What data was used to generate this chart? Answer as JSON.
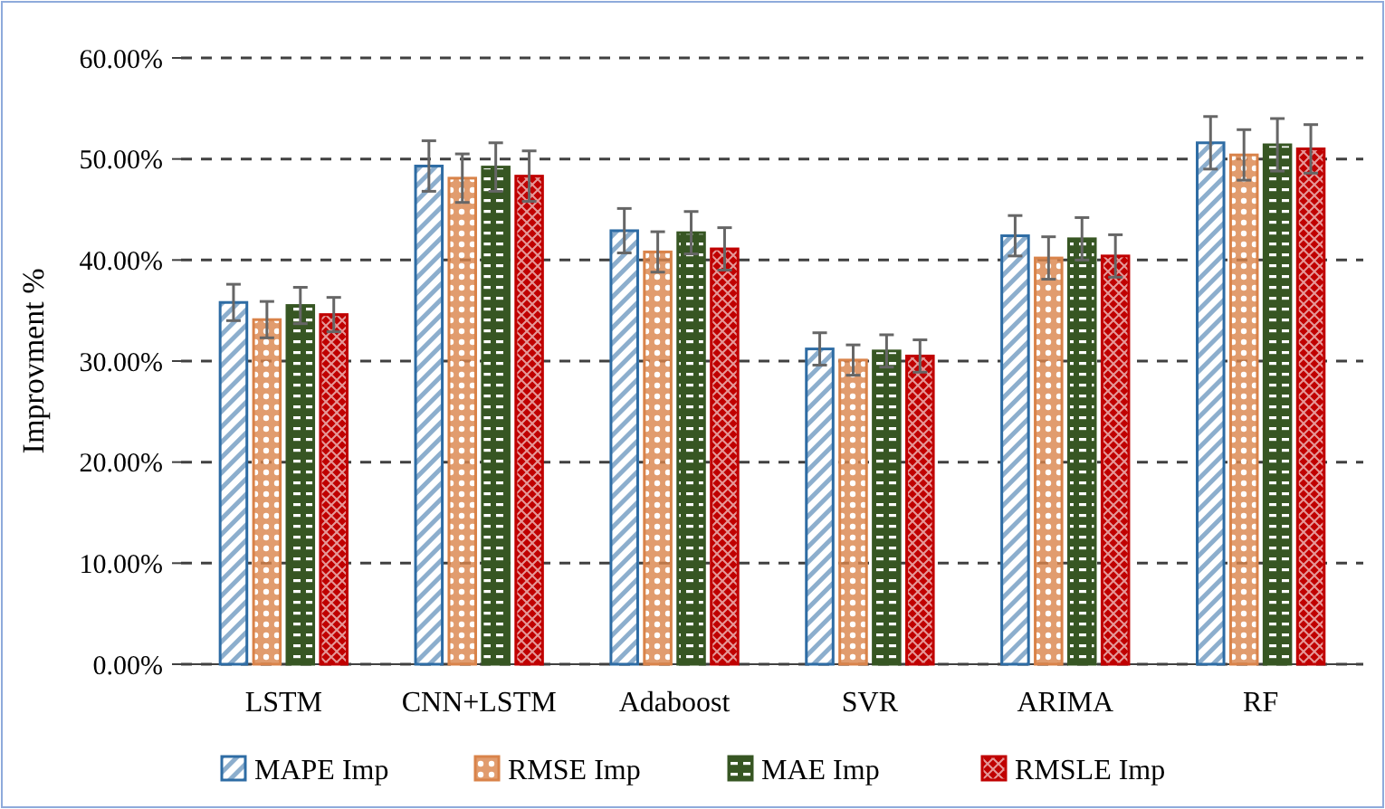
{
  "chart_data": {
    "type": "bar",
    "ylabel": "Improvment %",
    "categories": [
      "LSTM",
      "CNN+LSTM",
      "Adaboost",
      "SVR",
      "ARIMA",
      "RF"
    ],
    "series": [
      {
        "name": "MAPE Imp",
        "color": "#2e6ca4",
        "values": [
          35.8,
          49.3,
          42.9,
          31.2,
          42.4,
          51.6
        ],
        "errors": [
          1.8,
          2.5,
          2.2,
          1.6,
          2.0,
          2.6
        ]
      },
      {
        "name": "RMSE Imp",
        "color": "#d9834a",
        "values": [
          34.1,
          48.1,
          40.8,
          30.1,
          40.2,
          50.4
        ],
        "errors": [
          1.8,
          2.4,
          2.0,
          1.5,
          2.1,
          2.5
        ]
      },
      {
        "name": "MAE Imp",
        "color": "#375623",
        "values": [
          35.5,
          49.2,
          42.7,
          31.0,
          42.1,
          51.4
        ],
        "errors": [
          1.8,
          2.4,
          2.1,
          1.6,
          2.1,
          2.6
        ]
      },
      {
        "name": "RMSLE Imp",
        "color": "#c00000",
        "values": [
          34.6,
          48.3,
          41.1,
          30.5,
          40.4,
          51.0
        ],
        "errors": [
          1.7,
          2.5,
          2.1,
          1.6,
          2.1,
          2.4
        ]
      }
    ],
    "ylim": [
      0,
      60
    ],
    "yticks": [
      {
        "value": 0,
        "label": "0.00%"
      },
      {
        "value": 10,
        "label": "10.00%"
      },
      {
        "value": 20,
        "label": "20.00%"
      },
      {
        "value": 30,
        "label": "30.00%"
      },
      {
        "value": 40,
        "label": "40.00%"
      },
      {
        "value": 50,
        "label": "50.00%"
      },
      {
        "value": 60,
        "label": "60.00%"
      }
    ],
    "grid": "y",
    "legend": "bottom"
  }
}
